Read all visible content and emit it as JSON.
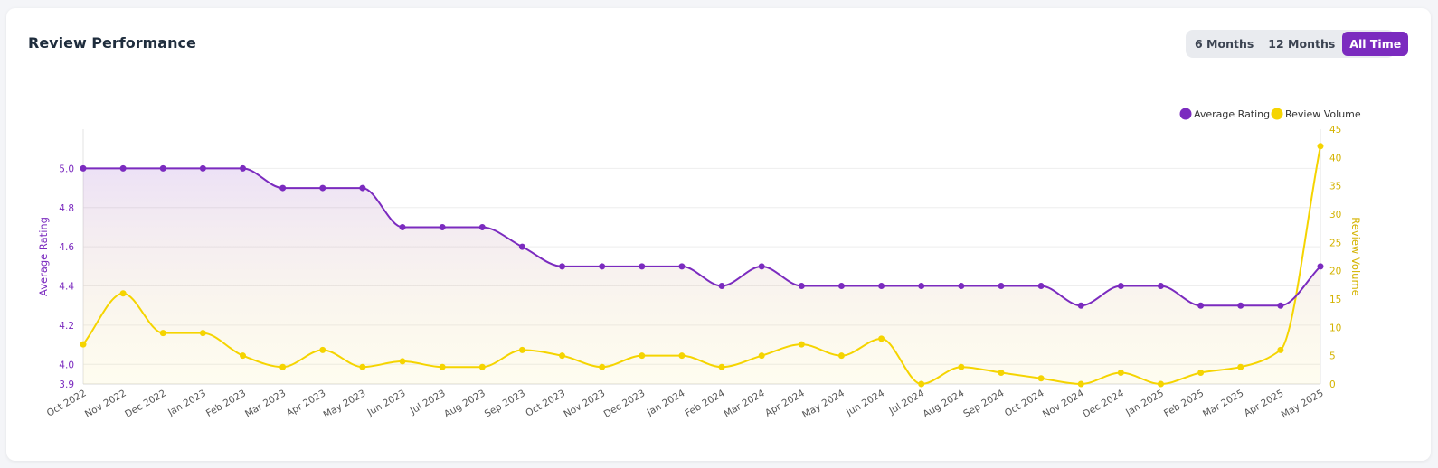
{
  "card": {
    "title": "Review Performance"
  },
  "range_toggle": {
    "options": [
      "6 Months",
      "12 Months",
      "All Time"
    ],
    "selected": "All Time"
  },
  "colors": {
    "rating": "#7b2bbf",
    "volume": "#f5d400",
    "grid": "#eeeeee",
    "tick_text": "#555555"
  },
  "chart_data": {
    "type": "line",
    "title": "",
    "categories": [
      "Oct 2022",
      "Nov 2022",
      "Dec 2022",
      "Jan 2023",
      "Feb 2023",
      "Mar 2023",
      "Apr 2023",
      "May 2023",
      "Jun 2023",
      "Jul 2023",
      "Aug 2023",
      "Sep 2023",
      "Oct 2023",
      "Nov 2023",
      "Dec 2023",
      "Jan 2024",
      "Feb 2024",
      "Mar 2024",
      "Apr 2024",
      "May 2024",
      "Jun 2024",
      "Jul 2024",
      "Aug 2024",
      "Sep 2024",
      "Oct 2024",
      "Nov 2024",
      "Dec 2024",
      "Jan 2025",
      "Feb 2025",
      "Mar 2025",
      "Apr 2025",
      "May 2025"
    ],
    "series": [
      {
        "name": "Average Rating",
        "axis": "left",
        "values": [
          5.0,
          5.0,
          5.0,
          5.0,
          5.0,
          4.9,
          4.9,
          4.9,
          4.7,
          4.7,
          4.7,
          4.6,
          4.5,
          4.5,
          4.5,
          4.5,
          4.4,
          4.5,
          4.4,
          4.4,
          4.4,
          4.4,
          4.4,
          4.4,
          4.4,
          4.3,
          4.4,
          4.4,
          4.3,
          4.3,
          4.3,
          4.5
        ]
      },
      {
        "name": "Review Volume",
        "axis": "right",
        "values": [
          7,
          16,
          9,
          9,
          5,
          3,
          6,
          3,
          4,
          3,
          3,
          6,
          5,
          3,
          5,
          5,
          3,
          5,
          7,
          5,
          8,
          0,
          3,
          2,
          1,
          0,
          2,
          0,
          2,
          3,
          6,
          42
        ]
      }
    ],
    "ylabel": "Average Rating",
    "ylim": [
      3.9,
      5.2
    ],
    "yticks": [
      "3.9",
      "4.0",
      "4.2",
      "4.4",
      "4.6",
      "4.8",
      "5.0"
    ],
    "y2label": "Review Volume",
    "y2lim": [
      0,
      45
    ],
    "y2ticks": [
      "0",
      "5",
      "10",
      "15",
      "20",
      "25",
      "30",
      "35",
      "40",
      "45"
    ],
    "legend": {
      "position": "top-right",
      "entries": [
        "Average Rating",
        "Review Volume"
      ]
    },
    "grid": true
  }
}
